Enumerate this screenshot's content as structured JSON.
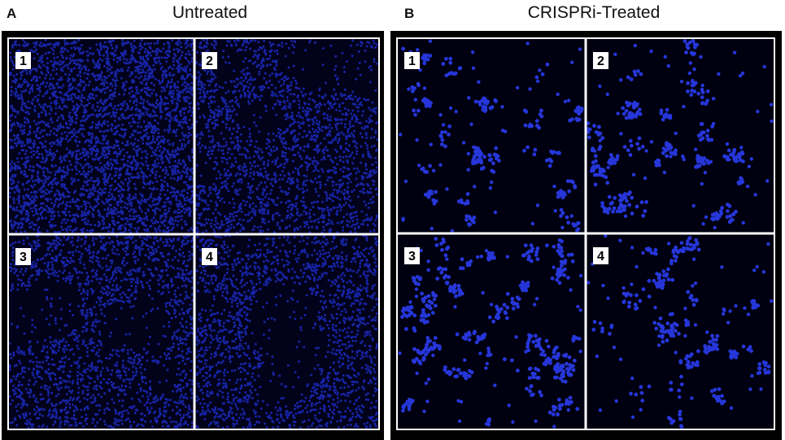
{
  "panels": [
    {
      "letter": "A",
      "title": "Untreated",
      "images": [
        "1",
        "2",
        "3",
        "4"
      ]
    },
    {
      "letter": "B",
      "title": "CRISPRi-Treated",
      "images": [
        "1",
        "2",
        "3",
        "4"
      ]
    }
  ]
}
